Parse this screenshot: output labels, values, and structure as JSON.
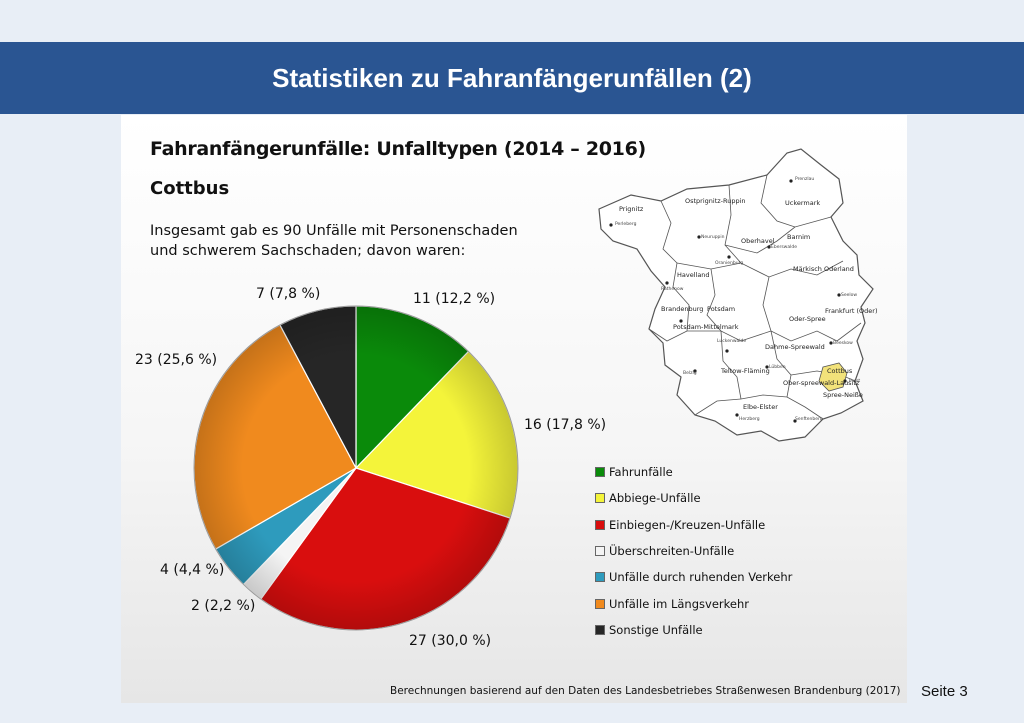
{
  "header": {
    "title": "Statistiken zu Fahranfängerunfällen (2)"
  },
  "panel": {
    "heading": "Fahranfängerunfälle: Unfalltypen (2014 – 2016)",
    "subheading": "Cottbus",
    "intro_line1": "Insgesamt gab es 90 Unfälle mit Personenschaden",
    "intro_line2": "und schwerem Sachschaden; davon waren:",
    "source": "Berechnungen basierend auf den Daten des Landesbetriebes Straßenwesen Brandenburg (2017)"
  },
  "footer": {
    "page": "Seite 3"
  },
  "chart_data": {
    "type": "pie",
    "title": "Fahranfängerunfälle: Unfalltypen (2014 – 2016)",
    "subtitle": "Cottbus",
    "total": 90,
    "slices": [
      {
        "name": "Fahrunfälle",
        "value": 11,
        "percent": 12.2,
        "label": "11 (12,2 %)",
        "color": "#0a8a0a"
      },
      {
        "name": "Abbiege-Unfälle",
        "value": 16,
        "percent": 17.8,
        "label": "16 (17,8 %)",
        "color": "#f4f43a"
      },
      {
        "name": "Einbiegen-/Kreuzen-Unfälle",
        "value": 27,
        "percent": 30.0,
        "label": "27 (30,0 %)",
        "color": "#d90e0e"
      },
      {
        "name": "Überschreiten-Unfälle",
        "value": 2,
        "percent": 2.2,
        "label": "2 (2,2 %)",
        "color": "#f4f4f4"
      },
      {
        "name": "Unfälle durch ruhenden Verkehr",
        "value": 4,
        "percent": 4.4,
        "label": "4 (4,4 %)",
        "color": "#2e9bbd"
      },
      {
        "name": "Unfälle im Längsverkehr",
        "value": 23,
        "percent": 25.6,
        "label": "23 (25,6 %)",
        "color": "#f08a1e"
      },
      {
        "name": "Sonstige Unfälle",
        "value": 7,
        "percent": 7.8,
        "label": "7 (7,8 %)",
        "color": "#262626"
      }
    ],
    "legend_position": "right"
  },
  "map": {
    "highlighted": "Cottbus",
    "highlight_color": "#f2e27a",
    "regions": [
      "Prignitz",
      "Ostprignitz-Ruppin",
      "Uckermark",
      "Oberhavel",
      "Barnim",
      "Havelland",
      "Märkisch Oderland",
      "Brandenburg",
      "Potsdam",
      "Frankfurt (Oder)",
      "Potsdam-Mittelmark",
      "Oder-Spree",
      "Dahme-Spreewald",
      "Teltow-Fläming",
      "Ober-spreewald-Lausitz",
      "Cottbus",
      "Spree-Neiße",
      "Elbe-Elster"
    ],
    "towns": [
      "Prenzlau",
      "Perleberg",
      "Neuruppin",
      "Oranienburg",
      "Eberswalde",
      "Rathenow",
      "Seelow",
      "Belzig",
      "Luckenwalde",
      "Lübben",
      "Beeskow",
      "Herzberg",
      "Senftenberg",
      "Forst"
    ]
  }
}
